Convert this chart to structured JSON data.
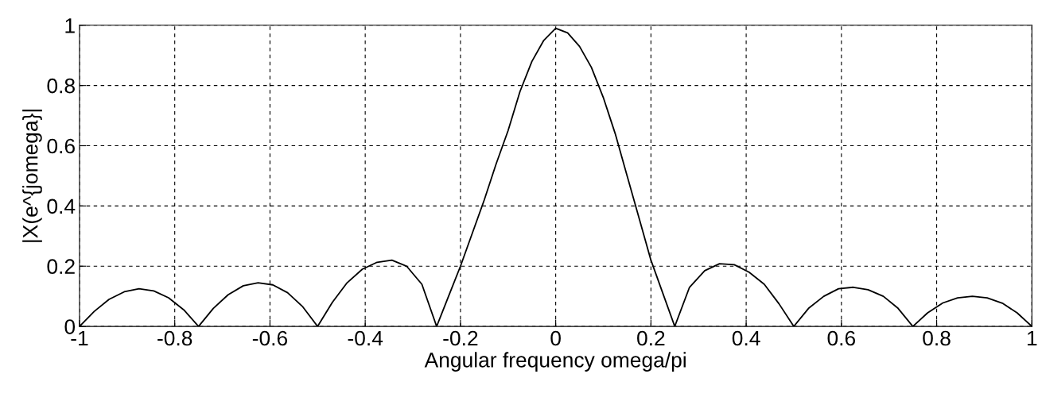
{
  "chart_data": {
    "type": "line",
    "xlabel": "Angular frequency omega/pi",
    "ylabel": "|X(e^{jomega}|",
    "xlim": [
      -1,
      1
    ],
    "ylim": [
      0,
      1
    ],
    "xticks": [
      -1,
      -0.8,
      -0.6,
      -0.4,
      -0.2,
      0,
      0.2,
      0.4,
      0.6,
      0.8,
      1
    ],
    "yticks": [
      0,
      0.2,
      0.4,
      0.6,
      0.8,
      1
    ],
    "grid": true,
    "marker": "none",
    "line_style": "solid",
    "series": [
      {
        "color": "#000000",
        "x": [
          -1,
          -0.969,
          -0.938,
          -0.906,
          -0.875,
          -0.844,
          -0.813,
          -0.781,
          -0.75,
          -0.719,
          -0.688,
          -0.656,
          -0.625,
          -0.594,
          -0.563,
          -0.531,
          -0.5,
          -0.469,
          -0.438,
          -0.406,
          -0.375,
          -0.344,
          -0.313,
          -0.281,
          -0.25,
          -0.225,
          -0.2,
          -0.175,
          -0.15,
          -0.125,
          -0.1,
          -0.075,
          -0.05,
          -0.025,
          0,
          0.025,
          0.05,
          0.075,
          0.1,
          0.125,
          0.15,
          0.175,
          0.2,
          0.225,
          0.25,
          0.281,
          0.313,
          0.344,
          0.375,
          0.406,
          0.438,
          0.469,
          0.5,
          0.531,
          0.563,
          0.594,
          0.625,
          0.656,
          0.688,
          0.719,
          0.75,
          0.781,
          0.813,
          0.844,
          0.875,
          0.906,
          0.938,
          0.969,
          1
        ],
        "values": [
          0,
          0.05,
          0.09,
          0.115,
          0.125,
          0.118,
          0.095,
          0.055,
          0,
          0.06,
          0.105,
          0.135,
          0.145,
          0.138,
          0.112,
          0.065,
          0,
          0.08,
          0.145,
          0.19,
          0.213,
          0.22,
          0.2,
          0.14,
          0,
          0.1,
          0.2,
          0.31,
          0.42,
          0.54,
          0.65,
          0.78,
          0.88,
          0.95,
          0.99,
          0.975,
          0.93,
          0.86,
          0.76,
          0.64,
          0.5,
          0.36,
          0.22,
          0.11,
          0,
          0.13,
          0.185,
          0.208,
          0.205,
          0.18,
          0.14,
          0.075,
          0,
          0.06,
          0.1,
          0.125,
          0.13,
          0.122,
          0.1,
          0.06,
          0,
          0.045,
          0.078,
          0.095,
          0.1,
          0.095,
          0.077,
          0.045,
          0
        ]
      }
    ]
  }
}
